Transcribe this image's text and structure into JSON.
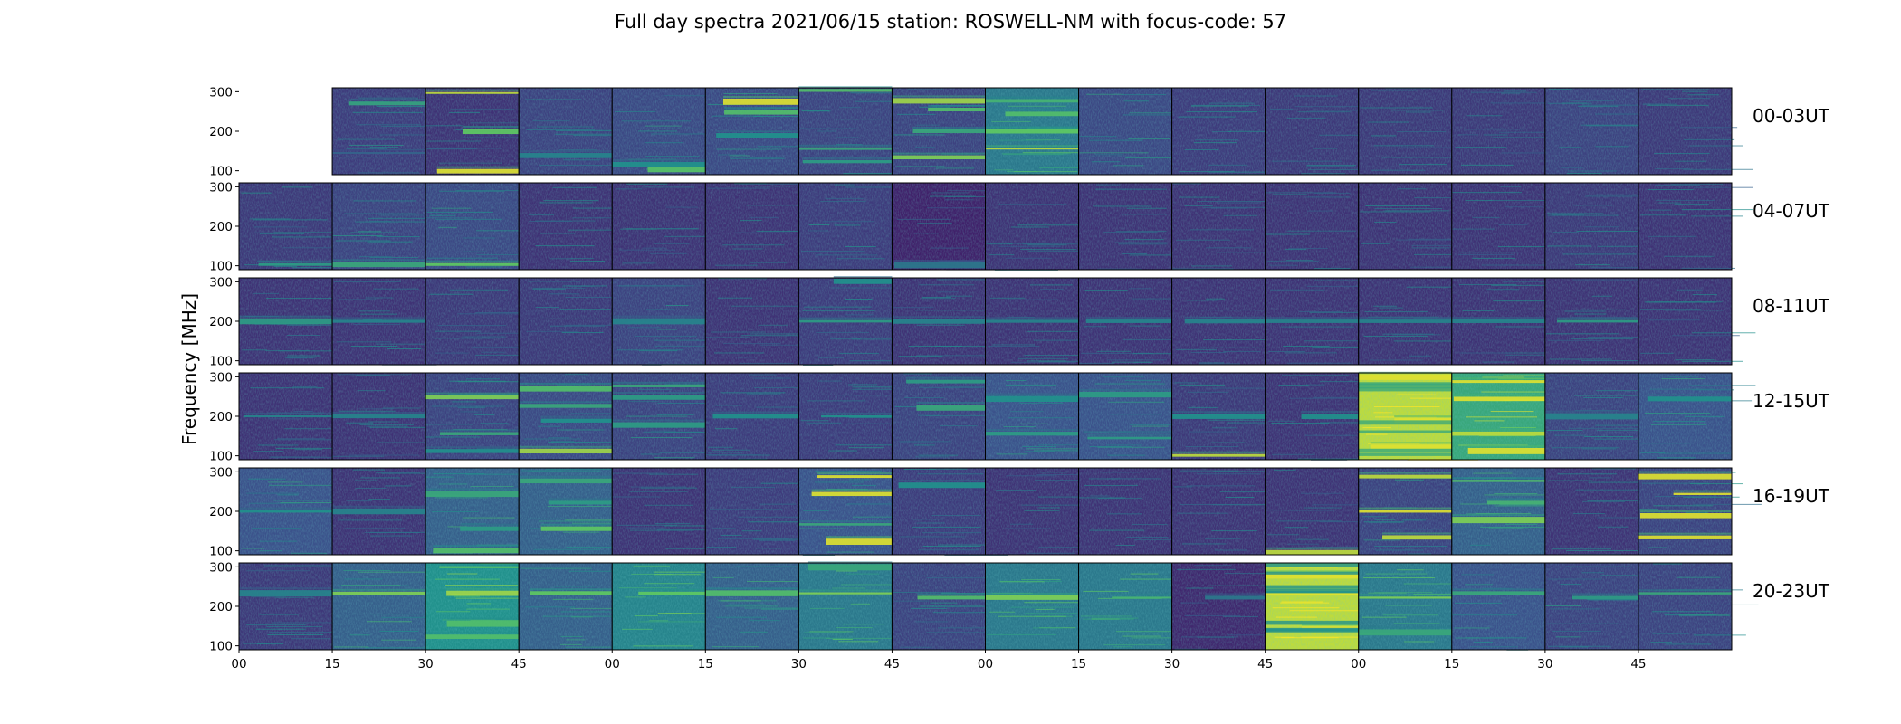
{
  "title": "Full day spectra 2021/06/15 station: ROSWELL-NM with focus-code: 57",
  "chart_data": {
    "type": "heatmap",
    "title": "Full day spectra 2021/06/15 station: ROSWELL-NM with focus-code: 57",
    "ylabel": "Frequency [MHz]",
    "xlabel": "",
    "yticks": [
      100,
      200,
      300
    ],
    "ylim": [
      90,
      310
    ],
    "x_tick_labels": [
      "00",
      "15",
      "30",
      "45",
      "00",
      "15",
      "30",
      "45",
      "00",
      "15",
      "30",
      "45",
      "00",
      "15",
      "30",
      "45"
    ],
    "minutes_per_panel": 15,
    "panels_per_row": 16,
    "colormap": [
      "#440154",
      "#3b528b",
      "#21918c",
      "#5ec962",
      "#fde725"
    ],
    "rows": [
      {
        "label": "00-03UT",
        "panels": [
          {
            "empty": true
          },
          {
            "base": 0.18,
            "bands": [
              [
                0.82,
                0.58
              ],
              [
                0.25,
                0.32
              ]
            ]
          },
          {
            "base": 0.15,
            "bands": [
              [
                0.5,
                0.75
              ],
              [
                0.04,
                0.95
              ],
              [
                0.94,
                0.9
              ]
            ]
          },
          {
            "base": 0.2,
            "bands": [
              [
                0.22,
                0.45
              ]
            ]
          },
          {
            "base": 0.22,
            "bands": [
              [
                0.12,
                0.5
              ],
              [
                0.06,
                0.72
              ]
            ]
          },
          {
            "base": 0.22,
            "bands": [
              [
                0.84,
                0.95
              ],
              [
                0.72,
                0.7
              ],
              [
                0.45,
                0.5
              ]
            ]
          },
          {
            "base": 0.2,
            "bands": [
              [
                0.97,
                0.7
              ],
              [
                0.3,
                0.6
              ],
              [
                0.15,
                0.55
              ]
            ]
          },
          {
            "base": 0.2,
            "bands": [
              [
                0.85,
                0.85
              ],
              [
                0.75,
                0.7
              ],
              [
                0.2,
                0.8
              ],
              [
                0.5,
                0.6
              ]
            ]
          },
          {
            "base": 0.4,
            "bands": [
              [
                0.7,
                0.7
              ],
              [
                0.3,
                0.9
              ],
              [
                0.5,
                0.75
              ],
              [
                0.85,
                0.65
              ]
            ]
          },
          {
            "base": 0.22,
            "bands": []
          },
          {
            "base": 0.18,
            "bands": []
          },
          {
            "base": 0.17,
            "bands": []
          },
          {
            "base": 0.17,
            "bands": []
          },
          {
            "base": 0.17,
            "bands": []
          },
          {
            "base": 0.2,
            "bands": []
          },
          {
            "base": 0.17,
            "bands": []
          }
        ]
      },
      {
        "label": "04-07UT",
        "panels": [
          {
            "base": 0.17,
            "bands": [
              [
                0.06,
                0.55
              ]
            ]
          },
          {
            "base": 0.2,
            "bands": [
              [
                0.06,
                0.6
              ]
            ]
          },
          {
            "base": 0.22,
            "bands": [
              [
                0.06,
                0.75
              ]
            ]
          },
          {
            "base": 0.15,
            "bands": []
          },
          {
            "base": 0.15,
            "bands": []
          },
          {
            "base": 0.15,
            "bands": []
          },
          {
            "base": 0.18,
            "bands": []
          },
          {
            "base": 0.1,
            "bands": [
              [
                0.05,
                0.4
              ]
            ]
          },
          {
            "base": 0.15,
            "bands": []
          },
          {
            "base": 0.15,
            "bands": []
          },
          {
            "base": 0.15,
            "bands": []
          },
          {
            "base": 0.15,
            "bands": []
          },
          {
            "base": 0.15,
            "bands": []
          },
          {
            "base": 0.15,
            "bands": []
          },
          {
            "base": 0.17,
            "bands": []
          },
          {
            "base": 0.15,
            "bands": []
          }
        ]
      },
      {
        "label": "08-11UT",
        "panels": [
          {
            "base": 0.15,
            "bands": [
              [
                0.5,
                0.55
              ]
            ]
          },
          {
            "base": 0.15,
            "bands": [
              [
                0.5,
                0.45
              ]
            ]
          },
          {
            "base": 0.17,
            "bands": []
          },
          {
            "base": 0.17,
            "bands": []
          },
          {
            "base": 0.2,
            "bands": [
              [
                0.5,
                0.45
              ]
            ]
          },
          {
            "base": 0.15,
            "bands": []
          },
          {
            "base": 0.18,
            "bands": [
              [
                0.5,
                0.55
              ],
              [
                0.96,
                0.5
              ]
            ]
          },
          {
            "base": 0.15,
            "bands": [
              [
                0.5,
                0.45
              ]
            ]
          },
          {
            "base": 0.15,
            "bands": [
              [
                0.5,
                0.45
              ]
            ]
          },
          {
            "base": 0.15,
            "bands": [
              [
                0.5,
                0.45
              ]
            ]
          },
          {
            "base": 0.15,
            "bands": [
              [
                0.5,
                0.45
              ]
            ]
          },
          {
            "base": 0.15,
            "bands": [
              [
                0.5,
                0.45
              ]
            ]
          },
          {
            "base": 0.15,
            "bands": [
              [
                0.5,
                0.45
              ]
            ]
          },
          {
            "base": 0.15,
            "bands": [
              [
                0.5,
                0.45
              ]
            ]
          },
          {
            "base": 0.15,
            "bands": [
              [
                0.5,
                0.55
              ]
            ]
          },
          {
            "base": 0.15,
            "bands": []
          }
        ]
      },
      {
        "label": "12-15UT",
        "panels": [
          {
            "base": 0.15,
            "bands": [
              [
                0.5,
                0.45
              ]
            ]
          },
          {
            "base": 0.15,
            "bands": [
              [
                0.5,
                0.45
              ]
            ]
          },
          {
            "base": 0.2,
            "bands": [
              [
                0.72,
                0.8
              ],
              [
                0.3,
                0.6
              ],
              [
                0.1,
                0.5
              ]
            ]
          },
          {
            "base": 0.22,
            "bands": [
              [
                0.82,
                0.7
              ],
              [
                0.62,
                0.6
              ],
              [
                0.1,
                0.85
              ],
              [
                0.45,
                0.5
              ]
            ]
          },
          {
            "base": 0.2,
            "bands": [
              [
                0.85,
                0.6
              ],
              [
                0.72,
                0.55
              ],
              [
                0.4,
                0.55
              ]
            ]
          },
          {
            "base": 0.18,
            "bands": [
              [
                0.5,
                0.5
              ]
            ]
          },
          {
            "base": 0.18,
            "bands": [
              [
                0.5,
                0.5
              ]
            ]
          },
          {
            "base": 0.2,
            "bands": [
              [
                0.6,
                0.6
              ],
              [
                0.9,
                0.55
              ]
            ]
          },
          {
            "base": 0.25,
            "bands": [
              [
                0.3,
                0.55
              ],
              [
                0.7,
                0.5
              ]
            ]
          },
          {
            "base": 0.25,
            "bands": [
              [
                0.75,
                0.55
              ],
              [
                0.25,
                0.55
              ]
            ]
          },
          {
            "base": 0.17,
            "bands": [
              [
                0.05,
                0.9
              ],
              [
                0.5,
                0.5
              ]
            ]
          },
          {
            "base": 0.15,
            "bands": [
              [
                0.5,
                0.5
              ]
            ]
          },
          {
            "base": 0.9,
            "bands": [
              [
                0.45,
                0.95
              ],
              [
                0.95,
                0.95
              ],
              [
                0.15,
                0.95
              ]
            ],
            "cold": 0.6
          },
          {
            "base": 0.6,
            "bands": [
              [
                0.9,
                0.95
              ],
              [
                0.7,
                0.95
              ],
              [
                0.3,
                0.9
              ],
              [
                0.1,
                0.95
              ]
            ]
          },
          {
            "base": 0.2,
            "bands": [
              [
                0.5,
                0.45
              ]
            ]
          },
          {
            "base": 0.25,
            "bands": [
              [
                0.7,
                0.5
              ]
            ]
          }
        ]
      },
      {
        "label": "16-19UT",
        "panels": [
          {
            "base": 0.25,
            "bands": [
              [
                0.5,
                0.5
              ]
            ]
          },
          {
            "base": 0.15,
            "bands": [
              [
                0.5,
                0.45
              ]
            ]
          },
          {
            "base": 0.3,
            "bands": [
              [
                0.7,
                0.6
              ],
              [
                0.3,
                0.55
              ],
              [
                0.05,
                0.7
              ]
            ]
          },
          {
            "base": 0.3,
            "bands": [
              [
                0.85,
                0.6
              ],
              [
                0.6,
                0.55
              ],
              [
                0.3,
                0.75
              ]
            ]
          },
          {
            "base": 0.15,
            "bands": []
          },
          {
            "base": 0.18,
            "bands": []
          },
          {
            "base": 0.25,
            "bands": [
              [
                0.9,
                0.95
              ],
              [
                0.7,
                0.95
              ],
              [
                0.15,
                0.95
              ],
              [
                0.35,
                0.6
              ]
            ]
          },
          {
            "base": 0.18,
            "bands": [
              [
                0.8,
                0.5
              ]
            ]
          },
          {
            "base": 0.15,
            "bands": []
          },
          {
            "base": 0.15,
            "bands": []
          },
          {
            "base": 0.15,
            "bands": []
          },
          {
            "base": 0.15,
            "bands": [
              [
                0.03,
                0.9
              ]
            ]
          },
          {
            "base": 0.2,
            "bands": [
              [
                0.5,
                0.95
              ],
              [
                0.9,
                0.9
              ],
              [
                0.2,
                0.9
              ]
            ]
          },
          {
            "base": 0.3,
            "bands": [
              [
                0.85,
                0.7
              ],
              [
                0.4,
                0.8
              ],
              [
                0.6,
                0.65
              ]
            ]
          },
          {
            "base": 0.15,
            "bands": []
          },
          {
            "base": 0.2,
            "bands": [
              [
                0.9,
                0.95
              ],
              [
                0.7,
                0.95
              ],
              [
                0.45,
                0.95
              ],
              [
                0.2,
                0.95
              ]
            ]
          }
        ]
      },
      {
        "label": "20-23UT",
        "panels": [
          {
            "base": 0.17,
            "bands": [
              [
                0.65,
                0.45
              ]
            ]
          },
          {
            "base": 0.3,
            "bands": [
              [
                0.65,
                0.8
              ]
            ]
          },
          {
            "base": 0.5,
            "bands": [
              [
                0.95,
                0.7
              ],
              [
                0.65,
                0.85
              ],
              [
                0.3,
                0.7
              ],
              [
                0.15,
                0.7
              ]
            ]
          },
          {
            "base": 0.3,
            "bands": [
              [
                0.65,
                0.75
              ]
            ]
          },
          {
            "base": 0.45,
            "bands": [
              [
                0.65,
                0.75
              ]
            ]
          },
          {
            "base": 0.3,
            "bands": [
              [
                0.65,
                0.7
              ]
            ]
          },
          {
            "base": 0.4,
            "bands": [
              [
                0.65,
                0.8
              ],
              [
                0.95,
                0.6
              ]
            ]
          },
          {
            "base": 0.2,
            "bands": [
              [
                0.6,
                0.7
              ]
            ]
          },
          {
            "base": 0.4,
            "bands": [
              [
                0.6,
                0.8
              ]
            ]
          },
          {
            "base": 0.4,
            "bands": [
              [
                0.6,
                0.65
              ]
            ]
          },
          {
            "base": 0.12,
            "bands": [
              [
                0.6,
                0.4
              ]
            ]
          },
          {
            "base": 0.9,
            "bands": [
              [
                0.65,
                0.95
              ],
              [
                0.25,
                0.95
              ],
              [
                0.85,
                0.95
              ]
            ],
            "cold": 0.5
          },
          {
            "base": 0.4,
            "bands": [
              [
                0.6,
                0.8
              ],
              [
                0.2,
                0.6
              ]
            ]
          },
          {
            "base": 0.25,
            "bands": [
              [
                0.65,
                0.6
              ]
            ]
          },
          {
            "base": 0.2,
            "bands": [
              [
                0.6,
                0.55
              ]
            ]
          },
          {
            "base": 0.2,
            "bands": [
              [
                0.65,
                0.6
              ]
            ]
          }
        ]
      }
    ]
  }
}
